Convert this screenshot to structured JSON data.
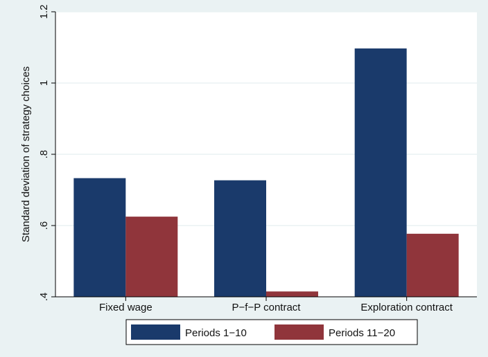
{
  "chart_data": {
    "type": "bar",
    "title": "",
    "xlabel": "",
    "ylabel": "Standard deviation of strategy choices",
    "ylim": [
      0.4,
      1.2
    ],
    "yticks": [
      0.4,
      0.6,
      0.8,
      1.0,
      1.2
    ],
    "ytick_labels": [
      ".4",
      ".6",
      ".8",
      "1",
      "1.2"
    ],
    "grid": true,
    "legend_position": "bottom",
    "categories": [
      "Fixed wage",
      "P−f−P contract",
      "Exploration contract"
    ],
    "series": [
      {
        "name": "Periods 1−10",
        "color": "#1a3a6b",
        "values": [
          0.733,
          0.727,
          1.097
        ]
      },
      {
        "name": "Periods 11−20",
        "color": "#90353b",
        "values": [
          0.625,
          0.415,
          0.577
        ]
      }
    ]
  },
  "colors": {
    "background": "#eaf2f3",
    "plot_background": "#ffffff",
    "grid": "#eaf2f3",
    "axis": "#000000"
  }
}
